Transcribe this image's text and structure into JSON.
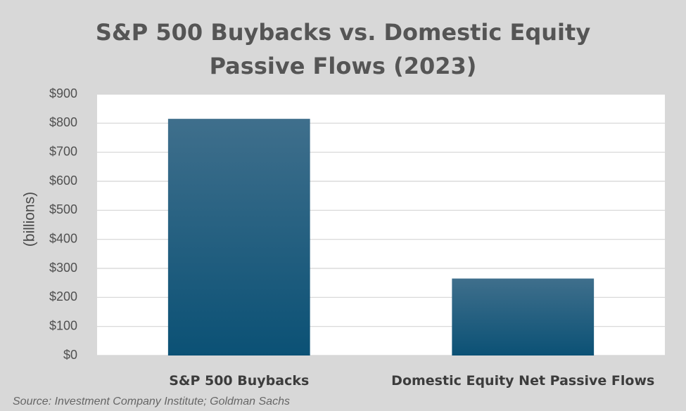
{
  "chart_data": {
    "type": "bar",
    "title": [
      "S&P 500 Buybacks vs. Domestic Equity",
      "Passive Flows (2023)"
    ],
    "ylabel": "(billions)",
    "xlabel": "",
    "categories": [
      "S&P 500 Buybacks",
      "Domestic Equity Net Passive Flows"
    ],
    "values": [
      815,
      265
    ],
    "ylim": [
      0,
      900
    ],
    "yticks": [
      0,
      100,
      200,
      300,
      400,
      500,
      600,
      700,
      800,
      900
    ],
    "ytick_labels": [
      "$0",
      "$100",
      "$200",
      "$300",
      "$400",
      "$500",
      "$600",
      "$700",
      "$800",
      "$900"
    ],
    "grid": true,
    "legend": "none",
    "colors": {
      "bar_top": "#3f6f8c",
      "bar_bottom": "#0b5175",
      "plot_background": "#ffffff",
      "figure_background": "#d8d8d8",
      "gridline": "#d4d4d4"
    }
  },
  "source_note": "Source: Investment Company Institute; Goldman Sachs"
}
